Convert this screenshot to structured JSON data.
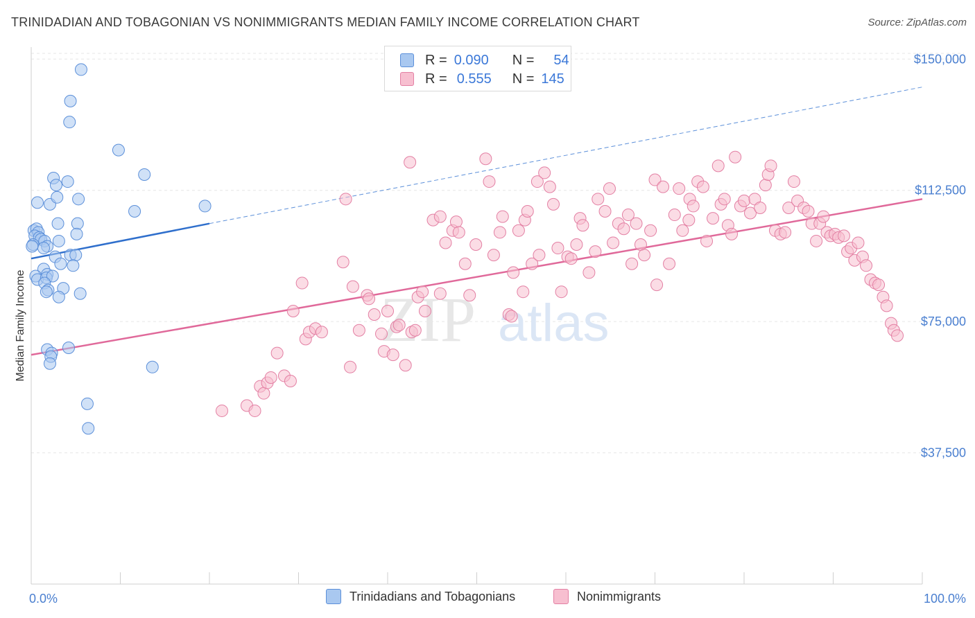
{
  "title": "TRINIDADIAN AND TOBAGONIAN VS NONIMMIGRANTS MEDIAN FAMILY INCOME CORRELATION CHART",
  "source": "Source: ZipAtlas.com",
  "watermark": {
    "zip": "ZIP",
    "atlas": "atlas"
  },
  "legend": {
    "r_label": "R =",
    "n_label": "N =",
    "rows": [
      {
        "r": "0.090",
        "n": "54",
        "color": "#a9c8f0",
        "border": "#5b8fd9"
      },
      {
        "r": "0.555",
        "n": "145",
        "color": "#f7bfd0",
        "border": "#e37fa3"
      }
    ]
  },
  "bottom_legend": [
    "Trinidadians and Tobagonians",
    "Nonimmigrants"
  ],
  "chart_data": {
    "type": "scatter",
    "xlabel": "",
    "ylabel": "Median Family Income",
    "xlim": [
      0,
      100
    ],
    "ylim": [
      0,
      155000
    ],
    "x_tick_labels": [
      "0.0%",
      "100.0%"
    ],
    "y_ticks": [
      37500,
      75000,
      112500,
      150000
    ],
    "y_tick_labels": [
      "$37,500",
      "$75,000",
      "$112,500",
      "$150,000"
    ],
    "grid": "horizontal dashed",
    "series": [
      {
        "name": "Trinidadians and Tobagonians",
        "color": "#5b8fd9",
        "fill": "#a9c8f0",
        "trend": {
          "x0": 0,
          "y0": 93000,
          "x1": 20,
          "y1": 103000,
          "extend_to": 100,
          "y_end": 142000
        },
        "points": [
          [
            5.6,
            147000
          ],
          [
            4.4,
            138000
          ],
          [
            4.3,
            132000
          ],
          [
            9.8,
            124000
          ],
          [
            12.7,
            117000
          ],
          [
            2.5,
            116000
          ],
          [
            4.1,
            115000
          ],
          [
            2.8,
            114000
          ],
          [
            0.7,
            109000
          ],
          [
            2.1,
            108500
          ],
          [
            5.3,
            110000
          ],
          [
            2.9,
            110500
          ],
          [
            11.6,
            106500
          ],
          [
            19.5,
            108000
          ],
          [
            0.3,
            101000
          ],
          [
            0.6,
            101500
          ],
          [
            0.8,
            100500
          ],
          [
            0.4,
            99500
          ],
          [
            0.9,
            99000
          ],
          [
            1.1,
            98500
          ],
          [
            1.5,
            98000
          ],
          [
            0.2,
            97000
          ],
          [
            0.1,
            96500
          ],
          [
            3.1,
            98000
          ],
          [
            1.8,
            96500
          ],
          [
            1.4,
            96000
          ],
          [
            3.0,
            103000
          ],
          [
            5.2,
            103000
          ],
          [
            5.1,
            100000
          ],
          [
            2.7,
            93500
          ],
          [
            4.4,
            94000
          ],
          [
            5.0,
            94000
          ],
          [
            3.3,
            91500
          ],
          [
            4.7,
            91000
          ],
          [
            1.4,
            90000
          ],
          [
            0.5,
            88000
          ],
          [
            1.8,
            88500
          ],
          [
            0.7,
            87000
          ],
          [
            1.7,
            87500
          ],
          [
            2.4,
            88000
          ],
          [
            1.5,
            86000
          ],
          [
            1.9,
            84000
          ],
          [
            3.6,
            84500
          ],
          [
            5.5,
            83000
          ],
          [
            3.1,
            82000
          ],
          [
            1.8,
            67000
          ],
          [
            4.2,
            67500
          ],
          [
            2.3,
            66000
          ],
          [
            2.2,
            65000
          ],
          [
            2.1,
            63000
          ],
          [
            13.6,
            62000
          ],
          [
            6.3,
            51500
          ],
          [
            6.4,
            44500
          ],
          [
            1.7,
            83500
          ]
        ]
      },
      {
        "name": "Nonimmigrants",
        "color": "#e37fa3",
        "fill": "#f7bfd0",
        "trend": {
          "x0": 0,
          "y0": 65500,
          "x1": 100,
          "y1": 110000
        },
        "points": [
          [
            21.4,
            49500
          ],
          [
            24.2,
            51000
          ],
          [
            25.1,
            49500
          ],
          [
            25.7,
            56500
          ],
          [
            26.1,
            54500
          ],
          [
            26.5,
            57500
          ],
          [
            26.9,
            59000
          ],
          [
            27.6,
            66000
          ],
          [
            28.4,
            59500
          ],
          [
            29.1,
            58000
          ],
          [
            29.4,
            78000
          ],
          [
            30.4,
            86000
          ],
          [
            30.8,
            70000
          ],
          [
            31.2,
            72000
          ],
          [
            31.9,
            73000
          ],
          [
            32.6,
            72000
          ],
          [
            35.0,
            92000
          ],
          [
            35.3,
            110000
          ],
          [
            35.8,
            62000
          ],
          [
            36.1,
            85000
          ],
          [
            36.8,
            72500
          ],
          [
            37.7,
            82500
          ],
          [
            37.9,
            81500
          ],
          [
            38.5,
            77000
          ],
          [
            39.3,
            71500
          ],
          [
            39.6,
            66500
          ],
          [
            40.0,
            78000
          ],
          [
            40.6,
            65500
          ],
          [
            41.0,
            73500
          ],
          [
            41.3,
            74000
          ],
          [
            42.0,
            62500
          ],
          [
            42.5,
            120500
          ],
          [
            42.7,
            72000
          ],
          [
            43.1,
            72500
          ],
          [
            43.4,
            82000
          ],
          [
            43.9,
            83500
          ],
          [
            44.2,
            78000
          ],
          [
            45.1,
            104000
          ],
          [
            45.9,
            105000
          ],
          [
            45.9,
            83000
          ],
          [
            46.5,
            97500
          ],
          [
            47.3,
            101000
          ],
          [
            47.7,
            103500
          ],
          [
            48.0,
            100500
          ],
          [
            48.7,
            91500
          ],
          [
            49.2,
            82500
          ],
          [
            49.9,
            97000
          ],
          [
            51.0,
            121500
          ],
          [
            51.4,
            115000
          ],
          [
            51.9,
            94000
          ],
          [
            52.6,
            100500
          ],
          [
            52.9,
            105000
          ],
          [
            53.6,
            77000
          ],
          [
            53.9,
            76500
          ],
          [
            54.1,
            89000
          ],
          [
            55.2,
            83500
          ],
          [
            54.7,
            101000
          ],
          [
            55.4,
            104000
          ],
          [
            55.7,
            106500
          ],
          [
            56.2,
            91500
          ],
          [
            57.0,
            94000
          ],
          [
            56.8,
            115000
          ],
          [
            57.6,
            117500
          ],
          [
            58.2,
            113500
          ],
          [
            58.6,
            108500
          ],
          [
            59.1,
            96000
          ],
          [
            59.5,
            83500
          ],
          [
            60.2,
            93500
          ],
          [
            60.6,
            93000
          ],
          [
            61.2,
            97000
          ],
          [
            61.6,
            104500
          ],
          [
            61.9,
            102500
          ],
          [
            62.6,
            89000
          ],
          [
            63.3,
            95000
          ],
          [
            63.6,
            110000
          ],
          [
            64.4,
            106500
          ],
          [
            64.9,
            113000
          ],
          [
            65.3,
            97500
          ],
          [
            65.9,
            103000
          ],
          [
            66.5,
            101500
          ],
          [
            67.0,
            105500
          ],
          [
            67.4,
            91500
          ],
          [
            67.9,
            103000
          ],
          [
            68.4,
            97000
          ],
          [
            68.8,
            94000
          ],
          [
            69.5,
            101000
          ],
          [
            70.0,
            115500
          ],
          [
            70.2,
            85500
          ],
          [
            70.9,
            113500
          ],
          [
            71.6,
            91500
          ],
          [
            72.2,
            105500
          ],
          [
            72.7,
            113000
          ],
          [
            73.1,
            101000
          ],
          [
            73.9,
            110000
          ],
          [
            74.3,
            108000
          ],
          [
            74.8,
            115000
          ],
          [
            75.4,
            113500
          ],
          [
            75.8,
            98000
          ],
          [
            76.5,
            104500
          ],
          [
            77.1,
            119500
          ],
          [
            77.4,
            108500
          ],
          [
            77.8,
            110000
          ],
          [
            78.2,
            102500
          ],
          [
            78.6,
            100000
          ],
          [
            79.0,
            122000
          ],
          [
            79.6,
            108000
          ],
          [
            80.0,
            109500
          ],
          [
            80.7,
            106000
          ],
          [
            81.2,
            110000
          ],
          [
            81.8,
            107500
          ],
          [
            82.4,
            114000
          ],
          [
            82.7,
            117000
          ],
          [
            83.0,
            119500
          ],
          [
            83.5,
            101000
          ],
          [
            84.1,
            100000
          ],
          [
            84.6,
            100500
          ],
          [
            85.0,
            107500
          ],
          [
            85.6,
            115000
          ],
          [
            86.0,
            109500
          ],
          [
            86.7,
            107500
          ],
          [
            87.2,
            106500
          ],
          [
            87.6,
            103000
          ],
          [
            88.1,
            98000
          ],
          [
            88.5,
            103000
          ],
          [
            88.9,
            105000
          ],
          [
            89.3,
            100500
          ],
          [
            89.7,
            99500
          ],
          [
            90.2,
            100000
          ],
          [
            90.6,
            99000
          ],
          [
            91.2,
            99500
          ],
          [
            91.6,
            95000
          ],
          [
            92.0,
            96000
          ],
          [
            92.4,
            92500
          ],
          [
            92.8,
            97500
          ],
          [
            93.3,
            93500
          ],
          [
            93.7,
            91000
          ],
          [
            94.2,
            87000
          ],
          [
            94.7,
            86000
          ],
          [
            95.1,
            85500
          ],
          [
            95.6,
            82000
          ],
          [
            96.0,
            79500
          ],
          [
            96.5,
            74500
          ],
          [
            96.8,
            72500
          ],
          [
            97.2,
            71000
          ],
          [
            73.8,
            104000
          ]
        ]
      }
    ]
  }
}
